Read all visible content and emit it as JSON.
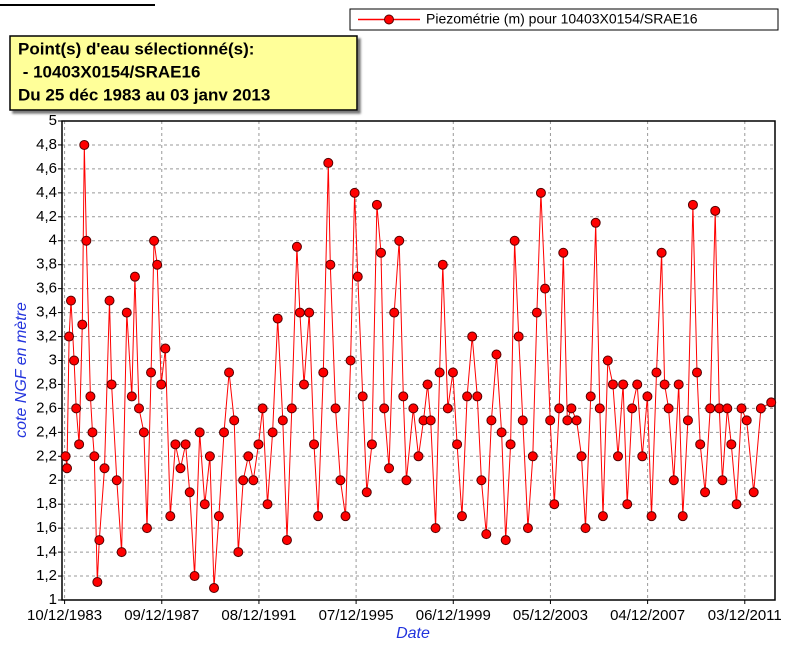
{
  "chart_data": {
    "type": "line",
    "annotations": [
      "Point(s) d'eau sélectionné(s):",
      " - 10403X0154/SRAE16",
      "Du 25 déc 1983 au 03 janv 2013"
    ],
    "xlabel": "Date",
    "ylabel": "cote NGF en mètre",
    "legend": "top-right",
    "grid": true,
    "x": [
      "1983-12-25",
      "1984-01-15",
      "1984-02-15",
      "1984-03-15",
      "1984-05-01",
      "1984-06-01",
      "1984-07-15",
      "1984-09-01",
      "1984-10-01",
      "1984-11-01",
      "1985-01-01",
      "1985-02-01",
      "1985-03-01",
      "1985-04-15",
      "1985-05-15",
      "1985-08-01",
      "1985-10-15",
      "1985-11-15",
      "1986-02-01",
      "1986-04-15",
      "1986-07-01",
      "1986-09-15",
      "1986-11-01",
      "1987-01-01",
      "1987-03-15",
      "1987-05-01",
      "1987-07-01",
      "1987-08-15",
      "1987-10-01",
      "1987-12-01",
      "1988-02-01",
      "1988-04-15",
      "1988-07-01",
      "1988-09-15",
      "1988-12-01",
      "1989-02-01",
      "1989-04-15",
      "1989-07-01",
      "1989-09-15",
      "1989-12-01",
      "1990-02-01",
      "1990-04-15",
      "1990-07-01",
      "1990-09-15",
      "1990-12-01",
      "1991-02-01",
      "1991-04-15",
      "1991-07-01",
      "1991-09-15",
      "1991-12-01",
      "1992-02-01",
      "1992-04-15",
      "1992-07-01",
      "1992-09-15",
      "1992-12-01",
      "1993-02-01",
      "1993-04-15",
      "1993-07-01",
      "1993-08-15",
      "1993-10-15",
      "1994-01-01",
      "1994-03-15",
      "1994-05-15",
      "1994-08-01",
      "1994-10-15",
      "1994-11-15",
      "1995-02-01",
      "1995-04-15",
      "1995-07-01",
      "1995-09-15",
      "1995-11-15",
      "1996-01-01",
      "1996-03-15",
      "1996-05-15",
      "1996-08-01",
      "1996-10-15",
      "1996-12-15",
      "1997-02-01",
      "1997-04-15",
      "1997-07-01",
      "1997-09-15",
      "1997-11-15",
      "1998-01-01",
      "1998-04-15",
      "1998-07-01",
      "1998-09-15",
      "1998-11-15",
      "1999-01-01",
      "1999-03-15",
      "1999-05-15",
      "1999-07-01",
      "1999-09-15",
      "1999-12-01",
      "2000-02-01",
      "2000-04-15",
      "2000-07-01",
      "2000-09-15",
      "2000-12-01",
      "2001-02-01",
      "2001-04-15",
      "2001-07-01",
      "2001-09-15",
      "2001-12-01",
      "2002-02-01",
      "2002-04-15",
      "2002-06-15",
      "2002-08-15",
      "2002-10-15",
      "2003-01-01",
      "2003-03-15",
      "2003-05-15",
      "2003-07-15",
      "2003-09-15",
      "2003-12-01",
      "2004-02-01",
      "2004-04-15",
      "2004-06-15",
      "2004-08-15",
      "2004-10-15",
      "2005-01-01",
      "2005-03-15",
      "2005-05-15",
      "2005-08-01",
      "2005-10-15",
      "2005-12-15",
      "2006-02-01",
      "2006-04-15",
      "2006-07-01",
      "2006-09-15",
      "2006-12-01",
      "2007-02-01",
      "2007-04-15",
      "2007-07-01",
      "2007-09-15",
      "2007-12-01",
      "2008-02-01",
      "2008-04-15",
      "2008-07-01",
      "2008-08-15",
      "2008-10-15",
      "2009-01-01",
      "2009-03-15",
      "2009-05-15",
      "2009-08-01",
      "2009-10-15",
      "2009-12-15",
      "2010-02-01",
      "2010-04-15",
      "2010-07-01",
      "2010-09-15",
      "2010-11-15",
      "2011-01-01",
      "2011-03-15",
      "2011-05-15",
      "2011-08-01",
      "2011-10-15",
      "2012-01-01",
      "2012-04-15",
      "2012-08-01",
      "2013-01-03"
    ],
    "series": [
      {
        "name": "Piezométrie (m) pour 10403X0154/SRAE16",
        "color": "#ff0000",
        "values": [
          2.2,
          2.1,
          3.2,
          3.5,
          3.0,
          2.6,
          2.3,
          3.3,
          4.8,
          4.0,
          2.7,
          2.4,
          2.2,
          1.15,
          1.5,
          2.1,
          3.5,
          2.8,
          2.0,
          1.4,
          3.4,
          2.7,
          3.7,
          2.6,
          2.4,
          1.6,
          2.9,
          4.0,
          3.8,
          2.8,
          3.1,
          1.7,
          2.3,
          2.1,
          2.3,
          1.9,
          1.2,
          2.4,
          1.8,
          2.2,
          1.1,
          1.7,
          2.4,
          2.9,
          2.5,
          1.4,
          2.0,
          2.2,
          2.0,
          2.3,
          2.6,
          1.8,
          2.4,
          3.35,
          2.5,
          1.5,
          2.6,
          3.95,
          3.4,
          2.8,
          3.4,
          2.3,
          1.7,
          2.9,
          4.65,
          3.8,
          2.6,
          2.0,
          1.7,
          3.0,
          4.4,
          3.7,
          2.7,
          1.9,
          2.3,
          4.3,
          3.9,
          2.6,
          2.1,
          3.4,
          4.0,
          2.7,
          2.0,
          2.6,
          2.2,
          2.5,
          2.8,
          2.5,
          1.6,
          2.9,
          3.8,
          2.6,
          2.9,
          2.3,
          1.7,
          2.7,
          3.2,
          2.7,
          2.0,
          1.55,
          2.5,
          3.05,
          2.4,
          1.5,
          2.3,
          4.0,
          3.2,
          2.5,
          1.6,
          2.2,
          3.4,
          4.4,
          3.6,
          2.5,
          1.8,
          2.6,
          3.9,
          2.5,
          2.6,
          2.5,
          2.2,
          1.6,
          2.7,
          4.15,
          2.6,
          1.7,
          3.0,
          2.8,
          2.2,
          2.8,
          1.8,
          2.6,
          2.8,
          2.2,
          2.7,
          1.7,
          2.9,
          3.9,
          2.8,
          2.6,
          2.0,
          2.8,
          1.7,
          2.5,
          4.3,
          2.9,
          2.3,
          1.9,
          2.6,
          4.25,
          2.6,
          2.0,
          2.6,
          2.3,
          1.8,
          2.6,
          2.5,
          1.9,
          2.6,
          2.65
        ]
      }
    ],
    "xlim": [
      "1983-11-01",
      "2013-03-01"
    ],
    "xticks": [
      {
        "value": "1983-12-10",
        "label": "10/12/1983"
      },
      {
        "value": "1987-12-09",
        "label": "09/12/1987"
      },
      {
        "value": "1991-12-08",
        "label": "08/12/1991"
      },
      {
        "value": "1995-12-07",
        "label": "07/12/1995"
      },
      {
        "value": "1999-12-06",
        "label": "06/12/1999"
      },
      {
        "value": "2003-12-05",
        "label": "05/12/2003"
      },
      {
        "value": "2007-12-04",
        "label": "04/12/2007"
      },
      {
        "value": "2011-12-03",
        "label": "03/12/2011"
      }
    ],
    "ylim": [
      1,
      5
    ],
    "yticks": [
      1,
      {
        "value": 1.2,
        "label": "1,2"
      },
      {
        "value": 1.4,
        "label": "1,4"
      },
      {
        "value": 1.6,
        "label": "1,6"
      },
      {
        "value": 1.8,
        "label": "1,8"
      },
      2,
      {
        "value": 2.2,
        "label": "2,2"
      },
      {
        "value": 2.4,
        "label": "2,4"
      },
      {
        "value": 2.6,
        "label": "2,6"
      },
      {
        "value": 2.8,
        "label": "2,8"
      },
      3,
      {
        "value": 3.2,
        "label": "3,2"
      },
      {
        "value": 3.4,
        "label": "3,4"
      },
      {
        "value": 3.6,
        "label": "3,6"
      },
      {
        "value": 3.8,
        "label": "3,8"
      },
      4,
      {
        "value": 4.2,
        "label": "4,2"
      },
      {
        "value": 4.4,
        "label": "4,4"
      },
      {
        "value": 4.6,
        "label": "4,6"
      },
      {
        "value": 4.8,
        "label": "4,8"
      },
      5
    ]
  }
}
